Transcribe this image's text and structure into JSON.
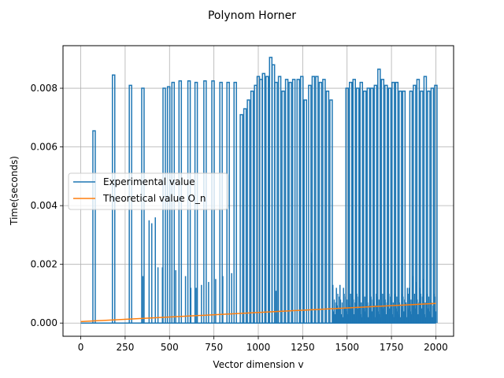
{
  "chart_data": {
    "type": "line",
    "title": "Polynom Horner",
    "xlabel": "Vector dimension v",
    "ylabel": "Time(seconds)",
    "xlim": [
      -100,
      2100
    ],
    "ylim": [
      -0.00045,
      0.00945
    ],
    "x_ticks": [
      0,
      250,
      500,
      750,
      1000,
      1250,
      1500,
      1750,
      2000
    ],
    "x_tick_labels": [
      "0",
      "250",
      "500",
      "750",
      "1000",
      "1250",
      "1500",
      "1750",
      "2000"
    ],
    "y_ticks": [
      0.0,
      0.002,
      0.004,
      0.006,
      0.008
    ],
    "y_tick_labels": [
      "0.000",
      "0.002",
      "0.004",
      "0.006",
      "0.008"
    ],
    "grid": true,
    "legend_position": "center-left",
    "series": [
      {
        "name": "Experimental value",
        "color": "#1f77b4",
        "spikes": [
          [
            75,
            0.00655
          ],
          [
            185,
            0.00845
          ],
          [
            280,
            0.0081
          ],
          [
            350,
            0.008
          ],
          [
            470,
            0.008
          ],
          [
            495,
            0.00805
          ],
          [
            520,
            0.0082
          ],
          [
            560,
            0.00825
          ],
          [
            610,
            0.00825
          ],
          [
            650,
            0.0082
          ],
          [
            700,
            0.00825
          ],
          [
            745,
            0.00825
          ],
          [
            790,
            0.0082
          ],
          [
            830,
            0.0082
          ],
          [
            870,
            0.0082
          ],
          [
            905,
            0.0071
          ],
          [
            925,
            0.0073
          ],
          [
            945,
            0.0076
          ],
          [
            965,
            0.0079
          ],
          [
            985,
            0.0081
          ],
          [
            1000,
            0.0084
          ],
          [
            1015,
            0.0083
          ],
          [
            1030,
            0.0085
          ],
          [
            1050,
            0.0084
          ],
          [
            1070,
            0.00905
          ],
          [
            1085,
            0.0088
          ],
          [
            1100,
            0.0082
          ],
          [
            1120,
            0.0084
          ],
          [
            1140,
            0.0079
          ],
          [
            1160,
            0.0083
          ],
          [
            1180,
            0.0082
          ],
          [
            1200,
            0.0083
          ],
          [
            1225,
            0.0083
          ],
          [
            1245,
            0.0084
          ],
          [
            1265,
            0.0076
          ],
          [
            1290,
            0.0081
          ],
          [
            1310,
            0.0084
          ],
          [
            1330,
            0.0084
          ],
          [
            1350,
            0.0082
          ],
          [
            1370,
            0.0083
          ],
          [
            1390,
            0.0079
          ],
          [
            1410,
            0.0076
          ],
          [
            1500,
            0.008
          ],
          [
            1520,
            0.0082
          ],
          [
            1540,
            0.0083
          ],
          [
            1560,
            0.008
          ],
          [
            1580,
            0.0082
          ],
          [
            1600,
            0.0079
          ],
          [
            1620,
            0.008
          ],
          [
            1640,
            0.008
          ],
          [
            1660,
            0.0081
          ],
          [
            1680,
            0.00865
          ],
          [
            1700,
            0.0083
          ],
          [
            1720,
            0.0081
          ],
          [
            1740,
            0.008
          ],
          [
            1760,
            0.0082
          ],
          [
            1780,
            0.0082
          ],
          [
            1800,
            0.0079
          ],
          [
            1820,
            0.0079
          ],
          [
            1860,
            0.0079
          ],
          [
            1880,
            0.0081
          ],
          [
            1900,
            0.0083
          ],
          [
            1920,
            0.0079
          ],
          [
            1940,
            0.0084
          ],
          [
            1960,
            0.0079
          ],
          [
            1980,
            0.008
          ],
          [
            2000,
            0.0081
          ]
        ],
        "small_spikes": [
          [
            350,
            0.0016
          ],
          [
            385,
            0.0035
          ],
          [
            400,
            0.0034
          ],
          [
            420,
            0.0036
          ],
          [
            435,
            0.0019
          ],
          [
            460,
            0.0019
          ],
          [
            535,
            0.0018
          ],
          [
            590,
            0.0016
          ],
          [
            620,
            0.0012
          ],
          [
            650,
            0.0012
          ],
          [
            680,
            0.0013
          ],
          [
            720,
            0.0014
          ],
          [
            760,
            0.0015
          ],
          [
            800,
            0.0016
          ],
          [
            850,
            0.0017
          ],
          [
            1100,
            0.0011
          ],
          [
            1300,
            0.0024
          ],
          [
            1420,
            0.0013
          ],
          [
            1440,
            0.0012
          ],
          [
            1460,
            0.0013
          ],
          [
            1480,
            0.0012
          ],
          [
            1840,
            0.0012
          ],
          [
            1850,
            0.0012
          ],
          [
            1870,
            0.0016
          ],
          [
            1890,
            0.0014
          ],
          [
            1910,
            0.0012
          ],
          [
            1930,
            0.0015
          ]
        ]
      },
      {
        "name": "Theoretical value O_n",
        "color": "#ff7f0e",
        "x": [
          0,
          2000
        ],
        "y": [
          5e-05,
          0.00067
        ]
      }
    ]
  }
}
